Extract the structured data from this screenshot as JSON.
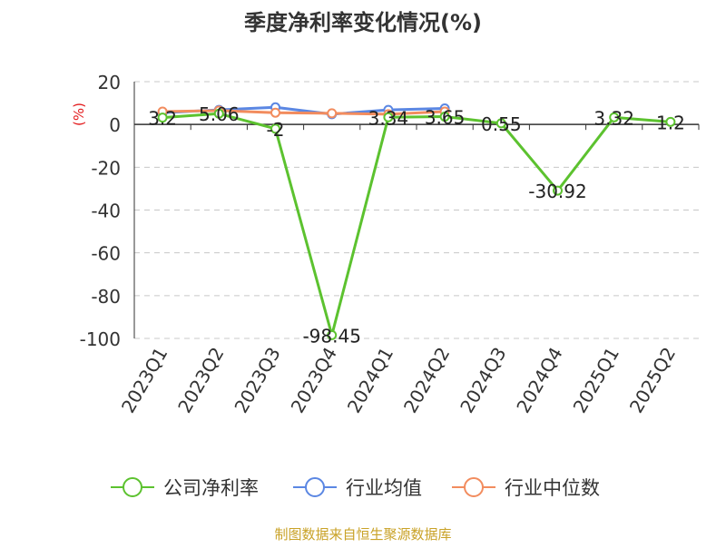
{
  "chart_data": {
    "type": "line",
    "title": "季度净利率变化情况(%)",
    "ylabel": "(%)",
    "xlabel": "",
    "categories": [
      "2023Q1",
      "2023Q2",
      "2023Q3",
      "2023Q4",
      "2024Q1",
      "2024Q2",
      "2024Q3",
      "2024Q4",
      "2025Q1",
      "2025Q2"
    ],
    "ylim": [
      -100,
      20
    ],
    "yticks": [
      20,
      0,
      -20,
      -40,
      -60,
      -80,
      -100
    ],
    "grid": true,
    "legend_position": "bottom",
    "series": [
      {
        "name": "公司净利率",
        "color": "#5cc22f",
        "values": [
          3.2,
          5.06,
          -2,
          -98.45,
          3.34,
          3.65,
          0.55,
          -30.92,
          3.32,
          1.2
        ],
        "labels": [
          "3.2",
          "5.06",
          "-2",
          "-98.45",
          "3.34",
          "3.65",
          "0.55",
          "-30.92",
          "3.32",
          "1.2"
        ]
      },
      {
        "name": "行业均值",
        "color": "#5b87e3",
        "values": [
          5.5,
          6.8,
          8.0,
          4.8,
          6.8,
          7.5,
          null,
          null,
          null,
          null
        ]
      },
      {
        "name": "行业中位数",
        "color": "#f28c5e",
        "values": [
          6.0,
          6.5,
          5.5,
          5.2,
          4.8,
          6.0,
          null,
          null,
          null,
          null
        ]
      }
    ]
  },
  "source": "制图数据来自恒生聚源数据库"
}
